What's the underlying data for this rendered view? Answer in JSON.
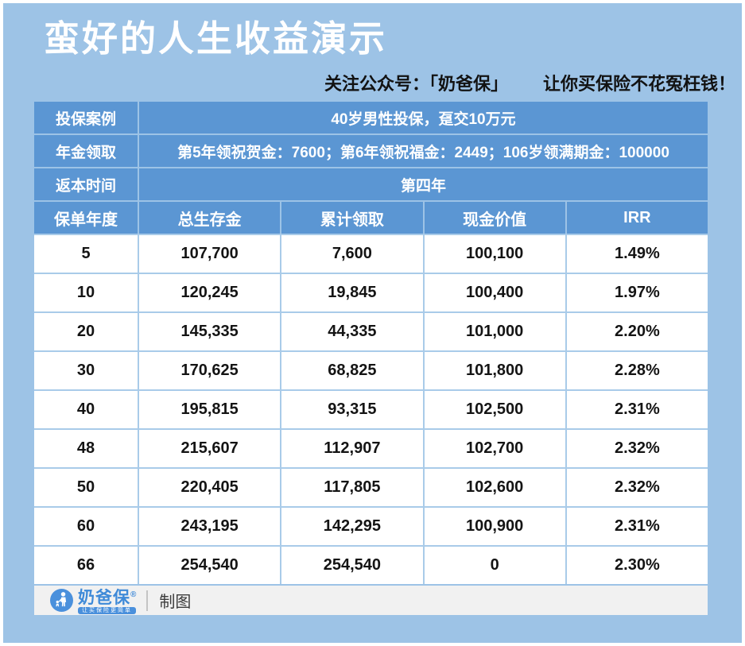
{
  "title": "蛮好的人生收益演示",
  "subtitle": {
    "part1": "关注公众号：「奶爸保」",
    "part2": "让你买保险不花冤枉钱！"
  },
  "info_rows": [
    {
      "label": "投保案例",
      "value": "40岁男性投保，趸交10万元"
    },
    {
      "label": "年金领取",
      "value": "第5年领祝贺金：7600；第6年领祝福金：2449；106岁领满期金：100000"
    },
    {
      "label": "返本时间",
      "value": "第四年"
    }
  ],
  "benefit_table": {
    "columns": [
      "保单年度",
      "总生存金",
      "累计领取",
      "现金价值",
      "IRR"
    ],
    "rows": [
      [
        "5",
        "107,700",
        "7,600",
        "100,100",
        "1.49%"
      ],
      [
        "10",
        "120,245",
        "19,845",
        "100,400",
        "1.97%"
      ],
      [
        "20",
        "145,335",
        "44,335",
        "101,000",
        "2.20%"
      ],
      [
        "30",
        "170,625",
        "68,825",
        "101,800",
        "2.28%"
      ],
      [
        "40",
        "195,815",
        "93,315",
        "102,500",
        "2.31%"
      ],
      [
        "48",
        "215,607",
        "112,907",
        "102,700",
        "2.32%"
      ],
      [
        "50",
        "220,405",
        "117,805",
        "102,600",
        "2.32%"
      ],
      [
        "60",
        "243,195",
        "142,295",
        "100,900",
        "2.31%"
      ],
      [
        "66",
        "254,540",
        "254,540",
        "0",
        "2.30%"
      ]
    ]
  },
  "footer": {
    "brand": "奶爸保",
    "registered_mark": "®",
    "slogan": "让买保险更简单",
    "credit": "制图"
  },
  "colors": {
    "page_background": "#9dc3e6",
    "header_cell_blue": "#5b96d3",
    "data_grid_blue": "#a9cbe9",
    "footer_gray": "#f1f1f1",
    "brand_blue": "#4a90dc",
    "title_text": "#ffffff",
    "data_text": "#141414"
  }
}
